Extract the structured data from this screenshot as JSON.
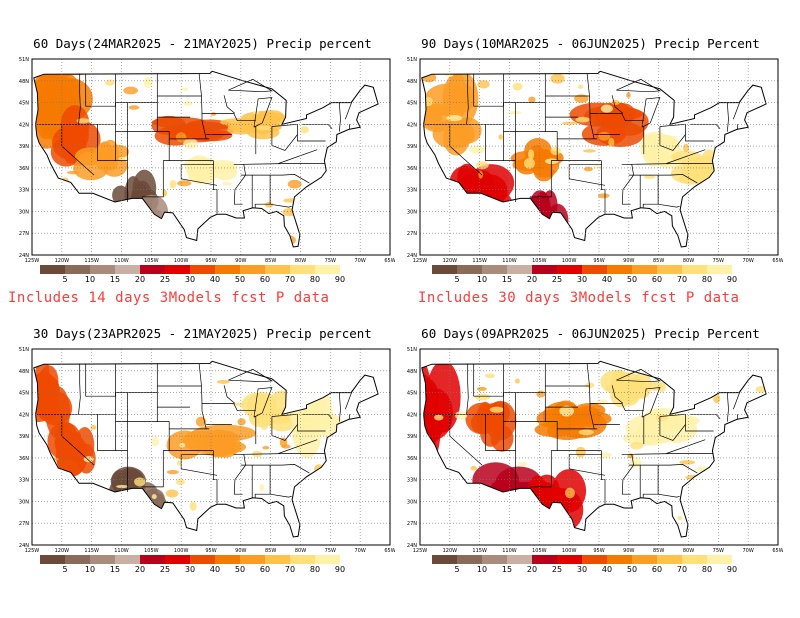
{
  "panels": [
    {
      "id": "p1",
      "title": "60 Days(24MAR2025 - 21MAY2025) Precip percent"
    },
    {
      "id": "p2",
      "title": "90 Days(10MAR2025 - 06JUN2025) Precip Percent"
    },
    {
      "id": "p3",
      "title": "30 Days(23APR2025 - 21MAY2025) Precip percent"
    },
    {
      "id": "p4",
      "title": "60 Days(09APR2025 - 06JUN2025) Precip Percent"
    }
  ],
  "notes": {
    "left": "Includes 14 days 3Models fcst P data",
    "right": "Includes 30 days 3Models fcst P data"
  },
  "map_axes": {
    "lat_labels": [
      "51N",
      "48N",
      "45N",
      "42N",
      "39N",
      "36N",
      "33N",
      "30N",
      "27N",
      "24N"
    ],
    "lon_labels": [
      "125W",
      "120W",
      "115W",
      "110W",
      "105W",
      "100W",
      "95W",
      "90W",
      "85W",
      "80W",
      "75W",
      "70W",
      "65W"
    ]
  },
  "legend": {
    "ticks": [
      "5",
      "10",
      "15",
      "20",
      "25",
      "30",
      "40",
      "50",
      "60",
      "70",
      "80",
      "90"
    ],
    "colors": [
      "#6b4a3a",
      "#8a6a58",
      "#a98c7c",
      "#c8b0a4",
      "#b8001c",
      "#e00000",
      "#ef4a00",
      "#f77a00",
      "#fb9c24",
      "#ffc24a",
      "#ffe07a",
      "#fff1a8"
    ]
  }
}
